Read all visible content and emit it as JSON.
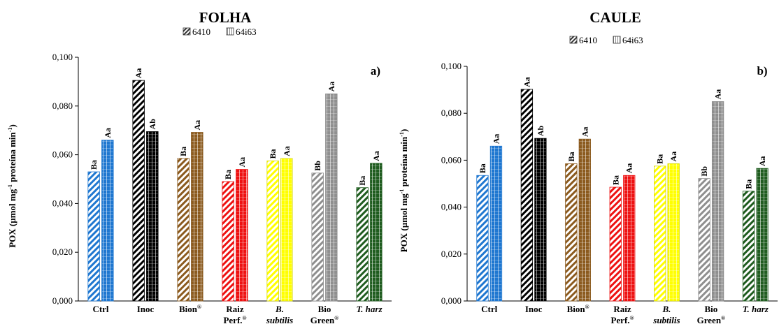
{
  "chart_data": [
    {
      "type": "bar",
      "title": "FOLHA",
      "panel_label": "a)",
      "ylabel": "POX (µmol mg-1 proteína min-1)",
      "ylim": [
        0,
        0.1
      ],
      "yticks": [
        "0,000",
        "0,020",
        "0,040",
        "0,060",
        "0,080",
        "0,100"
      ],
      "categories": [
        "Ctrl",
        "Inoc",
        "Bion®",
        "Raiz Perf.®",
        "B. subtilis",
        "Bio Green®",
        "T. harz"
      ],
      "series": [
        {
          "name": "6410",
          "pattern": "hatched",
          "values": [
            0.053,
            0.0905,
            0.0585,
            0.049,
            0.0575,
            0.0525,
            0.0465
          ],
          "labels": [
            "Ba",
            "Aa",
            "Ba",
            "Ba",
            "Ba",
            "Bb",
            "Ba"
          ]
        },
        {
          "name": "64i63",
          "pattern": "dotted",
          "values": [
            0.066,
            0.0695,
            0.0692,
            0.054,
            0.0585,
            0.085,
            0.0565
          ],
          "labels": [
            "Aa",
            "Ab",
            "Aa",
            "Aa",
            "Aa",
            "Aa",
            "Aa"
          ]
        }
      ],
      "colors": [
        "#1F77D0",
        "#000000",
        "#8B5A1E",
        "#EE1111",
        "#FFFF00",
        "#8F8F8F",
        "#1F5C1F"
      ],
      "legend_position": "top-center",
      "grid": false
    },
    {
      "type": "bar",
      "title": "CAULE",
      "panel_label": "b)",
      "ylabel": "POX (µmol mg-1 proteína min-1)",
      "ylim": [
        0,
        0.1
      ],
      "yticks": [
        "0,000",
        "0,020",
        "0,040",
        "0,060",
        "0,080",
        "0,100"
      ],
      "categories": [
        "Ctrl",
        "Inoc",
        "Bion®",
        "Raiz Perf.®",
        "B. subtilis",
        "Bio Green®",
        "T. harz"
      ],
      "series": [
        {
          "name": "6410",
          "pattern": "hatched",
          "values": [
            0.0535,
            0.0902,
            0.0585,
            0.0485,
            0.0575,
            0.0522,
            0.0468
          ],
          "labels": [
            "Ba",
            "Aa",
            "Ba",
            "Ba",
            "Ba",
            "Bb",
            "Ba"
          ]
        },
        {
          "name": "64i63",
          "pattern": "dotted",
          "values": [
            0.066,
            0.0693,
            0.069,
            0.0535,
            0.0585,
            0.085,
            0.0565
          ],
          "labels": [
            "Aa",
            "Ab",
            "Aa",
            "Aa",
            "Aa",
            "Aa",
            "Aa"
          ]
        }
      ],
      "colors": [
        "#1F77D0",
        "#000000",
        "#8B5A1E",
        "#EE1111",
        "#FFFF00",
        "#8F8F8F",
        "#1F5C1F"
      ],
      "legend_position": "top-center",
      "grid": false
    }
  ]
}
